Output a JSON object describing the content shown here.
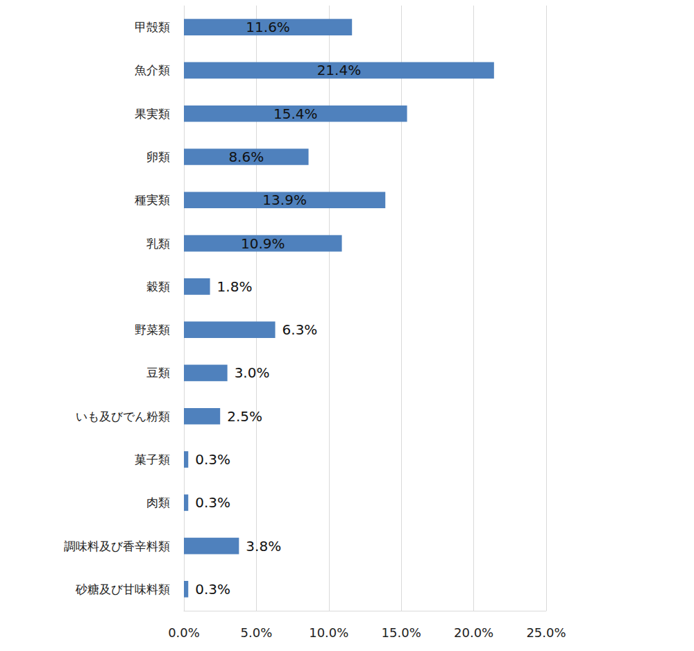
{
  "chart_data": {
    "type": "bar",
    "orientation": "horizontal",
    "categories": [
      "甲殻類",
      "魚介類",
      "果実類",
      "卵類",
      "種実類",
      "乳類",
      "穀類",
      "野菜類",
      "豆類",
      "いも及びでん粉類",
      "菓子類",
      "肉類",
      "調味料及び香辛料類",
      "砂糖及び甘味料類"
    ],
    "values": [
      11.6,
      21.4,
      15.4,
      8.6,
      13.9,
      10.9,
      1.8,
      6.3,
      3.0,
      2.5,
      0.3,
      0.3,
      3.8,
      0.3
    ],
    "value_labels": [
      "11.6%",
      "21.4%",
      "15.4%",
      "8.6%",
      "13.9%",
      "10.9%",
      "1.8%",
      "6.3%",
      "3.0%",
      "2.5%",
      "0.3%",
      "0.3%",
      "3.8%",
      "0.3%"
    ],
    "color": "#4f81bd",
    "xlim": [
      0,
      25
    ],
    "xticks": [
      {
        "value": 0,
        "label": "0.0%"
      },
      {
        "value": 5,
        "label": "5.0%"
      },
      {
        "value": 10,
        "label": "10.0%"
      },
      {
        "value": 15,
        "label": "15.0%"
      },
      {
        "value": 20,
        "label": "20.0%"
      },
      {
        "value": 25,
        "label": "25.0%"
      }
    ],
    "grid": true,
    "data_labels": true
  }
}
